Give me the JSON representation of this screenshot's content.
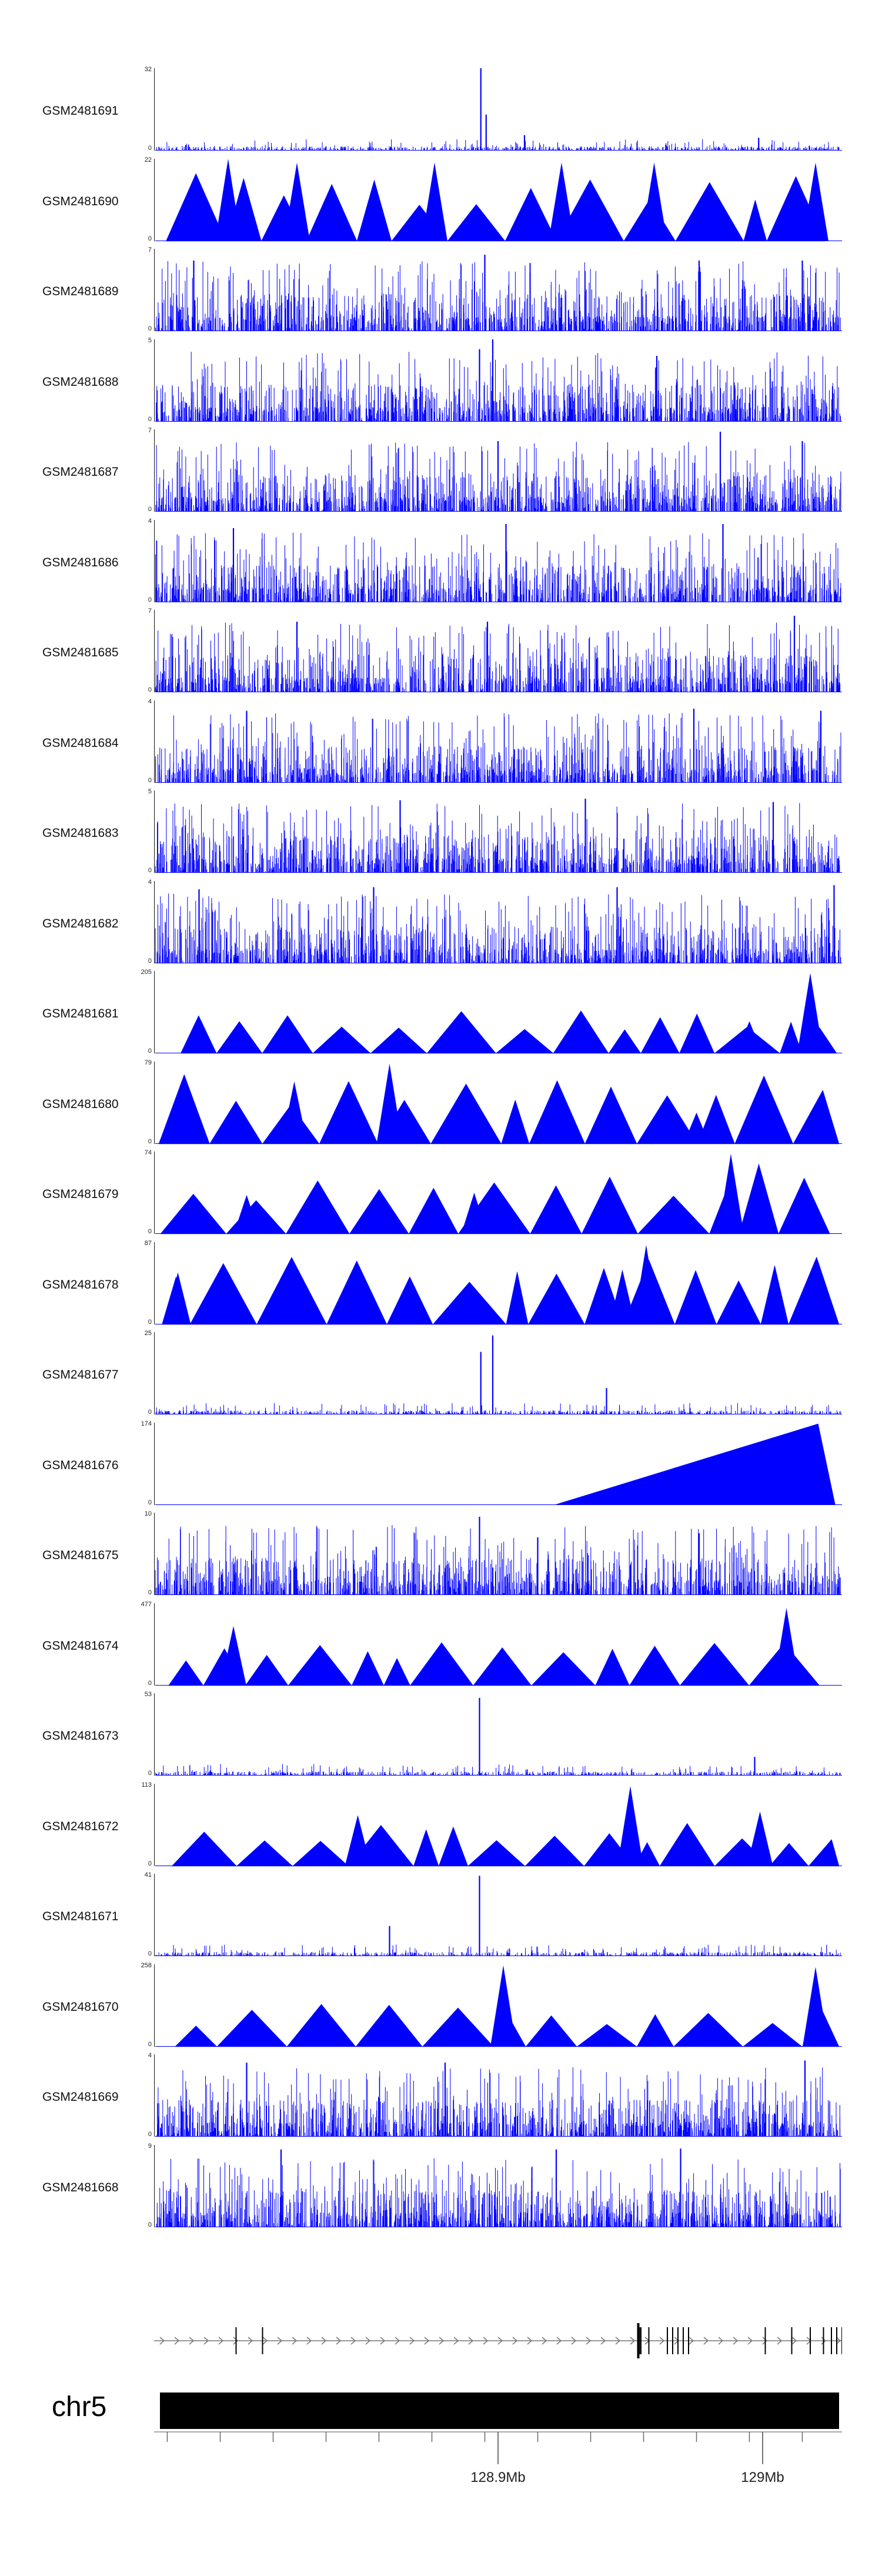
{
  "chart_data": {
    "type": "area",
    "title": "",
    "xlabel": "",
    "chromosome": "chr5",
    "x_range_mb": [
      128.77,
      129.03
    ],
    "x_ticks": [
      {
        "value": 128.9,
        "label": "128.9Mb"
      },
      {
        "value": 129.0,
        "label": "129Mb"
      }
    ],
    "series_color": "#0000ff",
    "tracks": [
      {
        "name": "GSM2481691",
        "ymax": "32",
        "ymin": "0",
        "style": "sparse",
        "peaks": [
          [
            128.8935,
            32
          ],
          [
            128.8955,
            14
          ],
          [
            128.91,
            6
          ],
          [
            128.9985,
            5
          ]
        ]
      },
      {
        "name": "GSM2481690",
        "ymax": "22",
        "ymin": "0",
        "style": "triangles",
        "peaks": [
          [
            128.798,
            22
          ],
          [
            128.824,
            21
          ],
          [
            128.876,
            21
          ],
          [
            128.924,
            21
          ],
          [
            128.959,
            21
          ],
          [
            129.02,
            21
          ]
        ]
      },
      {
        "name": "GSM2481689",
        "ymax": "7",
        "ymin": "0",
        "style": "dense",
        "peaks": [
          [
            128.785,
            6
          ],
          [
            128.895,
            6.5
          ],
          [
            128.976,
            6
          ],
          [
            129.015,
            6
          ]
        ]
      },
      {
        "name": "GSM2481688",
        "ymax": "5",
        "ymin": "0",
        "style": "dense",
        "peaks": [
          [
            128.893,
            4.4
          ],
          [
            128.898,
            5
          ],
          [
            128.96,
            4
          ]
        ]
      },
      {
        "name": "GSM2481687",
        "ymax": "7",
        "ymin": "0",
        "style": "dense",
        "peaks": [
          [
            128.9,
            6
          ],
          [
            128.984,
            6.8
          ],
          [
            129.015,
            6
          ]
        ]
      },
      {
        "name": "GSM2481686",
        "ymax": "4",
        "ymin": "0",
        "style": "dense",
        "peaks": [
          [
            128.8,
            3.6
          ],
          [
            128.903,
            3.8
          ],
          [
            128.985,
            3.8
          ]
        ]
      },
      {
        "name": "GSM2481685",
        "ymax": "7",
        "ymin": "0",
        "style": "dense",
        "peaks": [
          [
            128.824,
            6
          ],
          [
            128.896,
            6
          ],
          [
            129.012,
            6.5
          ]
        ]
      },
      {
        "name": "GSM2481684",
        "ymax": "4",
        "ymin": "0",
        "style": "dense",
        "peaks": [
          [
            128.805,
            3.5
          ],
          [
            128.974,
            3.6
          ],
          [
            129.022,
            3.5
          ]
        ]
      },
      {
        "name": "GSM2481683",
        "ymax": "5",
        "ymin": "0",
        "style": "dense",
        "peaks": [
          [
            128.863,
            4.4
          ],
          [
            128.933,
            4.5
          ],
          [
            129.004,
            4.3
          ]
        ]
      },
      {
        "name": "GSM2481682",
        "ymax": "4",
        "ymin": "0",
        "style": "dense",
        "peaks": [
          [
            128.787,
            3.6
          ],
          [
            128.853,
            3.7
          ],
          [
            128.945,
            3.7
          ],
          [
            129.027,
            3.8
          ]
        ]
      },
      {
        "name": "GSM2481681",
        "ymax": "205",
        "ymin": "0",
        "style": "triangles",
        "peaks": [
          [
            128.995,
            80
          ],
          [
            129.018,
            200
          ]
        ]
      },
      {
        "name": "GSM2481680",
        "ymax": "79",
        "ymin": "0",
        "style": "triangles",
        "peaks": [
          [
            128.823,
            60
          ],
          [
            128.859,
            77
          ],
          [
            128.975,
            30
          ]
        ]
      },
      {
        "name": "GSM2481679",
        "ymax": "74",
        "ymin": "0",
        "style": "triangles",
        "peaks": [
          [
            128.805,
            35
          ],
          [
            128.891,
            37
          ],
          [
            128.988,
            72
          ]
        ]
      },
      {
        "name": "GSM2481678",
        "ymax": "87",
        "ymin": "0",
        "style": "triangles",
        "peaks": [
          [
            128.779,
            55
          ],
          [
            128.947,
            58
          ],
          [
            128.956,
            84
          ]
        ]
      },
      {
        "name": "GSM2481677",
        "ymax": "25",
        "ymin": "0",
        "style": "sparse",
        "peaks": [
          [
            128.8935,
            19
          ],
          [
            128.898,
            24
          ],
          [
            128.941,
            8
          ]
        ]
      },
      {
        "name": "GSM2481676",
        "ymax": "174",
        "ymin": "0",
        "style": "ramp",
        "peaks": [
          [
            129.021,
            172
          ]
        ]
      },
      {
        "name": "GSM2481675",
        "ymax": "10",
        "ymin": "0",
        "style": "dense",
        "peaks": [
          [
            128.893,
            9.5
          ],
          [
            128.915,
            7
          ],
          [
            128.976,
            7.5
          ]
        ]
      },
      {
        "name": "GSM2481674",
        "ymax": "477",
        "ymin": "0",
        "style": "triangles",
        "peaks": [
          [
            128.8,
            345
          ],
          [
            129.009,
            450
          ]
        ]
      },
      {
        "name": "GSM2481673",
        "ymax": "53",
        "ymin": "0",
        "style": "sparse",
        "peaks": [
          [
            128.893,
            50
          ],
          [
            128.997,
            12
          ]
        ]
      },
      {
        "name": "GSM2481672",
        "ymax": "113",
        "ymin": "0",
        "style": "triangles",
        "peaks": [
          [
            128.847,
            70
          ],
          [
            128.95,
            110
          ],
          [
            128.999,
            75
          ]
        ]
      },
      {
        "name": "GSM2481671",
        "ymax": "41",
        "ymin": "0",
        "style": "sparse",
        "peaks": [
          [
            128.893,
            40
          ],
          [
            128.859,
            15
          ]
        ]
      },
      {
        "name": "GSM2481670",
        "ymax": "258",
        "ymin": "0",
        "style": "triangles",
        "peaks": [
          [
            128.902,
            255
          ],
          [
            129.02,
            250
          ]
        ]
      },
      {
        "name": "GSM2481669",
        "ymax": "4",
        "ymin": "0",
        "style": "dense",
        "peaks": [
          [
            128.805,
            3.6
          ],
          [
            128.88,
            3.6
          ],
          [
            129.016,
            3.7
          ]
        ]
      },
      {
        "name": "GSM2481668",
        "ymax": "9",
        "ymin": "0",
        "style": "dense",
        "peaks": [
          [
            128.818,
            8.5
          ],
          [
            128.922,
            8.5
          ],
          [
            128.969,
            8.6
          ]
        ]
      }
    ],
    "genes": {
      "strand": "+",
      "exon_positions_mb": [
        128.801,
        128.811,
        128.953,
        128.9535,
        128.954,
        128.957,
        128.964,
        128.966,
        128.968,
        128.97,
        128.972,
        129.001,
        129.011,
        129.018,
        129.023,
        129.026,
        129.028,
        129.03
      ]
    }
  }
}
